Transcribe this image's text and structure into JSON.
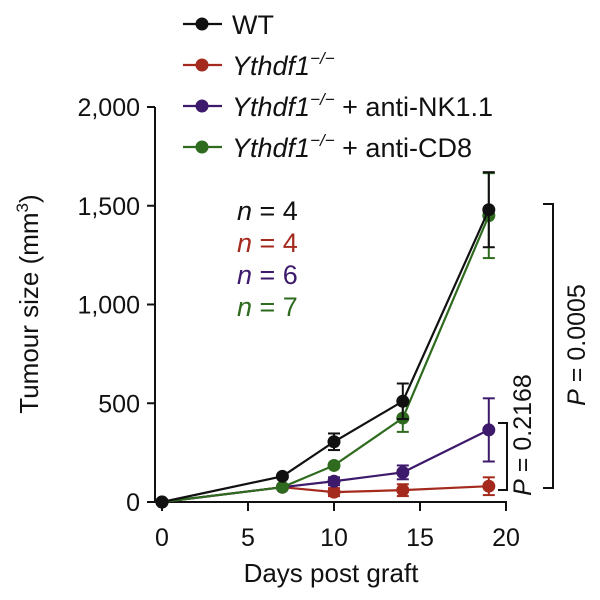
{
  "chart_data": {
    "type": "line",
    "title": "",
    "xlabel": "Days post graft",
    "ylabel_main": "Tumour size (mm",
    "ylabel_sup": "3",
    "ylabel_close": ")",
    "xlim": [
      0,
      20
    ],
    "ylim": [
      0,
      2000
    ],
    "xticks": [
      0,
      5,
      10,
      15,
      20
    ],
    "xtick_labels": [
      "0",
      "5",
      "10",
      "15",
      "20"
    ],
    "yticks": [
      0,
      500,
      1000,
      1500,
      2000
    ],
    "ytick_labels": [
      "0",
      "500",
      "1,000",
      "1,500",
      "2,000"
    ],
    "grid": false,
    "legend_position": "top",
    "series": [
      {
        "name": "WT",
        "name_italic": "",
        "name_sup": "",
        "name_suffix": "WT",
        "color": "#111111",
        "x": [
          0,
          7,
          10,
          14,
          19
        ],
        "values": [
          0,
          130,
          305,
          510,
          1480
        ],
        "err": [
          0,
          0,
          42,
          90,
          190
        ],
        "n_label": "n",
        "n_value": "= 4"
      },
      {
        "name": "Ythdf1−/−",
        "name_italic": "Ythdf1",
        "name_sup": "−/−",
        "name_suffix": "",
        "color": "#a52a1e",
        "x": [
          0,
          7,
          10,
          14,
          19
        ],
        "values": [
          0,
          75,
          50,
          60,
          80
        ],
        "err": [
          0,
          0,
          20,
          30,
          45
        ],
        "n_label": "n",
        "n_value": "= 4"
      },
      {
        "name": "Ythdf1−/− + anti-NK1.1",
        "name_italic": "Ythdf1",
        "name_sup": "−/−",
        "name_suffix": " + anti-NK1.1",
        "color": "#3d1a6b",
        "x": [
          0,
          7,
          10,
          14,
          19
        ],
        "values": [
          0,
          75,
          105,
          150,
          365
        ],
        "err": [
          0,
          0,
          20,
          35,
          160
        ],
        "n_label": "n",
        "n_value": "= 6"
      },
      {
        "name": "Ythdf1−/− + anti-CD8",
        "name_italic": "Ythdf1",
        "name_sup": "−/−",
        "name_suffix": " + anti-CD8",
        "color": "#2e6b1e",
        "x": [
          0,
          7,
          10,
          14,
          19
        ],
        "values": [
          0,
          75,
          185,
          425,
          1450
        ],
        "err": [
          0,
          0,
          0,
          70,
          215
        ],
        "n_label": "n",
        "n_value": "= 7"
      }
    ],
    "annotations": [
      {
        "label": "P",
        "value": " = 0.0005",
        "between": [
          "WT",
          "Ythdf1−/−"
        ]
      },
      {
        "label": "P",
        "value": " = 0.2168",
        "between": [
          "Ythdf1−/− + anti-NK1.1",
          "Ythdf1−/−"
        ]
      }
    ]
  }
}
